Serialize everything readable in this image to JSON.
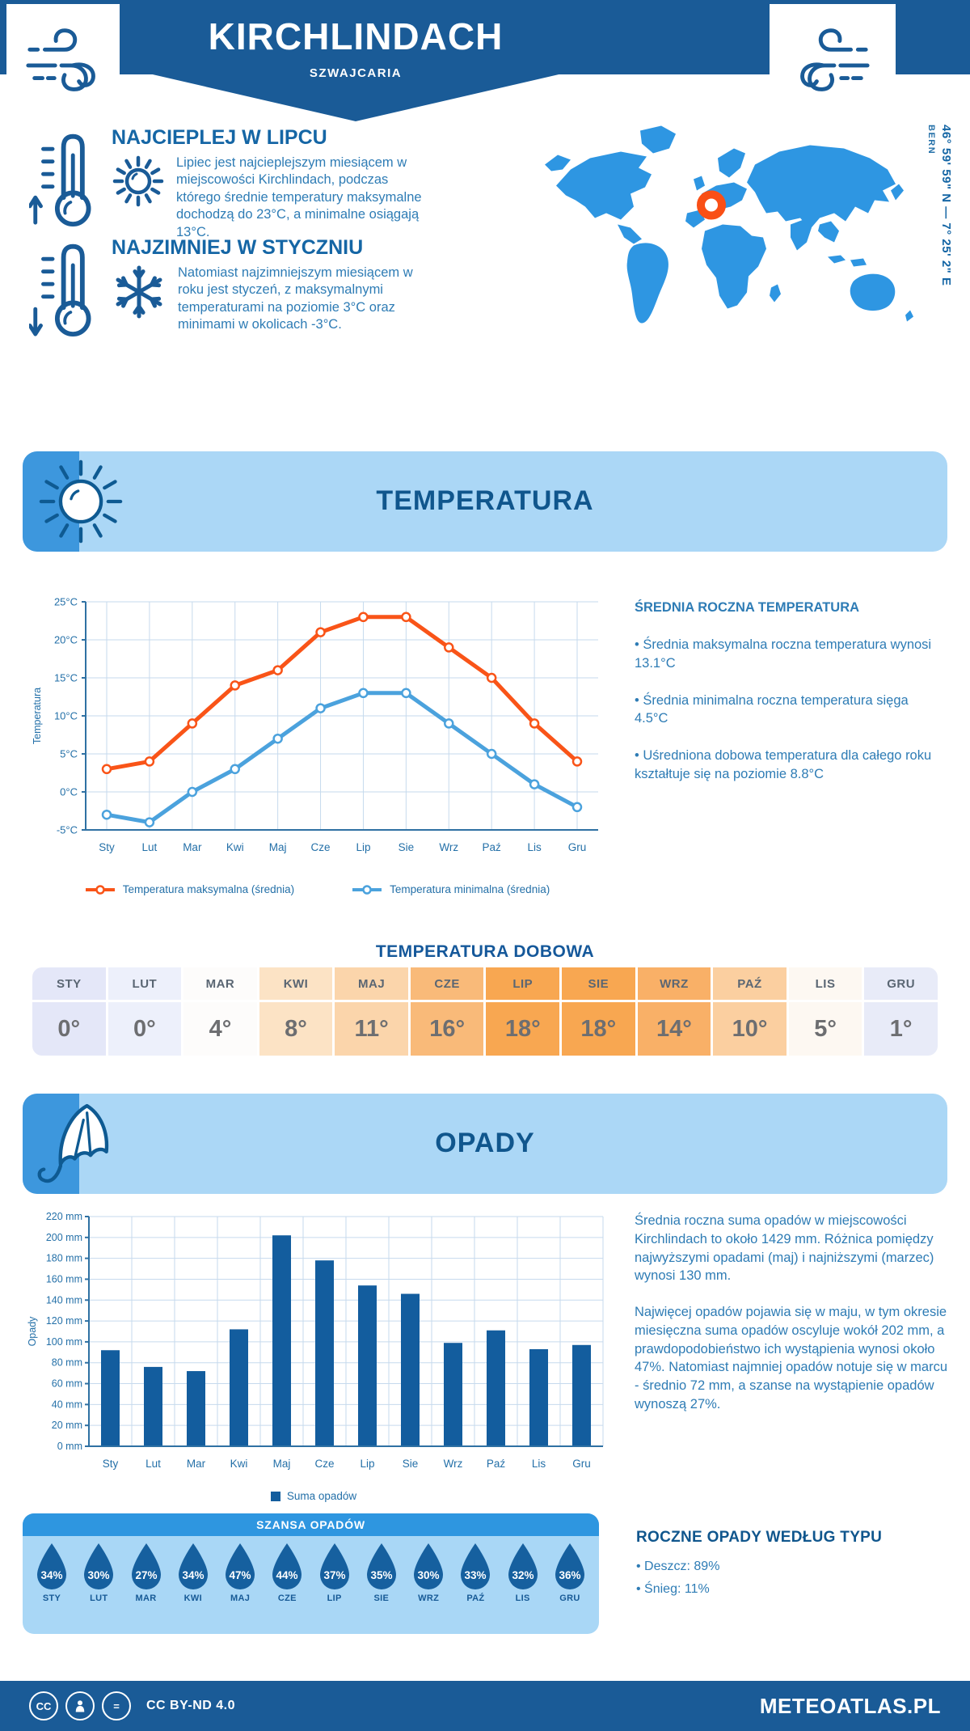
{
  "header": {
    "title": "KIRCHLINDACH",
    "subtitle": "SZWAJCARIA"
  },
  "map": {
    "coordinates": "46° 59' 59\" N — 7° 25' 2\" E",
    "capital": "BERN"
  },
  "highlights": [
    {
      "icon": "thermometer-up-icon",
      "secondary_icon": "sun-icon",
      "title": "NAJCIEPLEJ W LIPCU",
      "text": "Lipiec jest najcieplejszym miesiącem w miejscowości Kirchlindach, podczas którego średnie temperatury maksymalne dochodzą do 23°C, a minimalne osiągają 13°C."
    },
    {
      "icon": "thermometer-down-icon",
      "secondary_icon": "snowflake-icon",
      "title": "NAJZIMNIEJ W STYCZNIU",
      "text": "Natomiast najzimniejszym miesiącem w roku jest styczeń, z maksymalnymi temperaturami na poziomie 3°C oraz minimami w okolicach -3°C."
    }
  ],
  "temperature_section": {
    "title": "TEMPERATURA",
    "icon": "sun-icon"
  },
  "annual_temperature": {
    "title": "ŚREDNIA ROCZNA TEMPERATURA",
    "bullets": [
      "• Średnia maksymalna roczna temperatura wynosi 13.1°C",
      "• Średnia minimalna roczna temperatura sięga 4.5°C",
      "• Uśredniona dobowa temperatura dla całego roku kształtuje się na poziomie 8.8°C"
    ]
  },
  "precipitation_section": {
    "title": "OPADY",
    "icon": "umbrella-icon",
    "paragraphs": [
      "Średnia roczna suma opadów w miejscowości Kirchlindach to około 1429 mm. Różnica pomiędzy najwyższymi opadami (maj) i najniższymi (marzec) wynosi 130 mm.",
      "Najwięcej opadów pojawia się w maju, w tym okresie miesięczna suma opadów oscyluje wokół 202 mm, a prawdopodobieństwo ich wystąpienia wynosi około 47%. Natomiast najmniej opadów notuje się w marcu - średnio 72 mm, a szanse na wystąpienie opadów wynoszą 27%."
    ]
  },
  "precip_type": {
    "title": "ROCZNE OPADY WEDŁUG TYPU",
    "items": [
      "• Deszcz: 89%",
      "• Śnieg: 11%"
    ]
  },
  "footer": {
    "license": "CC BY-ND 4.0",
    "site": "METEOATLAS.PL"
  },
  "chart_data": [
    {
      "type": "line",
      "title": "",
      "categories": [
        "Sty",
        "Lut",
        "Mar",
        "Kwi",
        "Maj",
        "Cze",
        "Lip",
        "Sie",
        "Wrz",
        "Paź",
        "Lis",
        "Gru"
      ],
      "series": [
        {
          "name": "Temperatura maksymalna (średnia)",
          "color": "#f95418",
          "values": [
            3,
            4,
            9,
            14,
            16,
            21,
            23,
            23,
            19,
            15,
            9,
            4
          ]
        },
        {
          "name": "Temperatura minimalna (średnia)",
          "color": "#4ba2dd",
          "values": [
            -3,
            -4,
            0,
            3,
            7,
            11,
            13,
            13,
            9,
            5,
            1,
            -2
          ]
        }
      ],
      "xlabel": "",
      "ylabel": "Temperatura",
      "ylim": [
        -5,
        25
      ],
      "ytick_step": 5,
      "ytick_suffix": "°C",
      "grid": true,
      "legend_position": "bottom"
    },
    {
      "type": "bar",
      "title": "",
      "categories": [
        "Sty",
        "Lut",
        "Mar",
        "Kwi",
        "Maj",
        "Cze",
        "Lip",
        "Sie",
        "Wrz",
        "Paź",
        "Lis",
        "Gru"
      ],
      "series_name": "Suma opadów",
      "color": "#135d9e",
      "values": [
        92,
        76,
        72,
        112,
        202,
        178,
        154,
        146,
        99,
        111,
        93,
        97
      ],
      "xlabel": "",
      "ylabel": "Opady",
      "ylim": [
        0,
        220
      ],
      "ytick_step": 20,
      "ytick_suffix": " mm",
      "grid": true,
      "legend_position": "bottom"
    },
    {
      "type": "table",
      "title": "TEMPERATURA DOBOWA",
      "categories": [
        "STY",
        "LUT",
        "MAR",
        "KWI",
        "MAJ",
        "CZE",
        "LIP",
        "SIE",
        "WRZ",
        "PAŹ",
        "LIS",
        "GRU"
      ],
      "values": [
        "0°",
        "0°",
        "4°",
        "8°",
        "11°",
        "16°",
        "18°",
        "18°",
        "14°",
        "10°",
        "5°",
        "1°"
      ],
      "cell_colors": [
        "#e4e7f8",
        "#edf0fb",
        "#fdfcfb",
        "#fce3c5",
        "#fbd5ab",
        "#f9ba79",
        "#f8a751",
        "#f8a751",
        "#f9b067",
        "#fbcfa0",
        "#fdf8f2",
        "#e8ebf8"
      ]
    },
    {
      "type": "table",
      "title": "SZANSA OPADÓW",
      "categories": [
        "STY",
        "LUT",
        "MAR",
        "KWI",
        "MAJ",
        "CZE",
        "LIP",
        "SIE",
        "WRZ",
        "PAŹ",
        "LIS",
        "GRU"
      ],
      "values": [
        "34%",
        "30%",
        "27%",
        "34%",
        "47%",
        "44%",
        "37%",
        "35%",
        "30%",
        "33%",
        "32%",
        "36%"
      ]
    }
  ],
  "palette": {
    "primary_blue": "#1a5b97",
    "panel_light_blue": "#abd7f6",
    "accent_blue": "#2e96e0",
    "patch_blue": "#3d97dd",
    "map_blue": "#2e96e2",
    "marker_orange": "#f94f16",
    "line_max_orange": "#f95418",
    "line_min_blue": "#4ba2dd",
    "bar_blue": "#135d9e",
    "droplet_blue": "#16609f",
    "heading_blue": "#1566a5",
    "section_title_blue": "#10568d",
    "body_text_blue": "#2e7cb5",
    "tick_text_blue": "#2470a8",
    "grid_blue": "#c6daed",
    "axis_blue": "#2f71a3"
  },
  "icons": [
    "wind-icon",
    "thermometer-up-icon",
    "thermometer-down-icon",
    "sun-icon",
    "snowflake-icon",
    "umbrella-icon",
    "location-marker-icon",
    "raindrop-icon",
    "cc-icon",
    "person-icon",
    "nd-icon"
  ]
}
